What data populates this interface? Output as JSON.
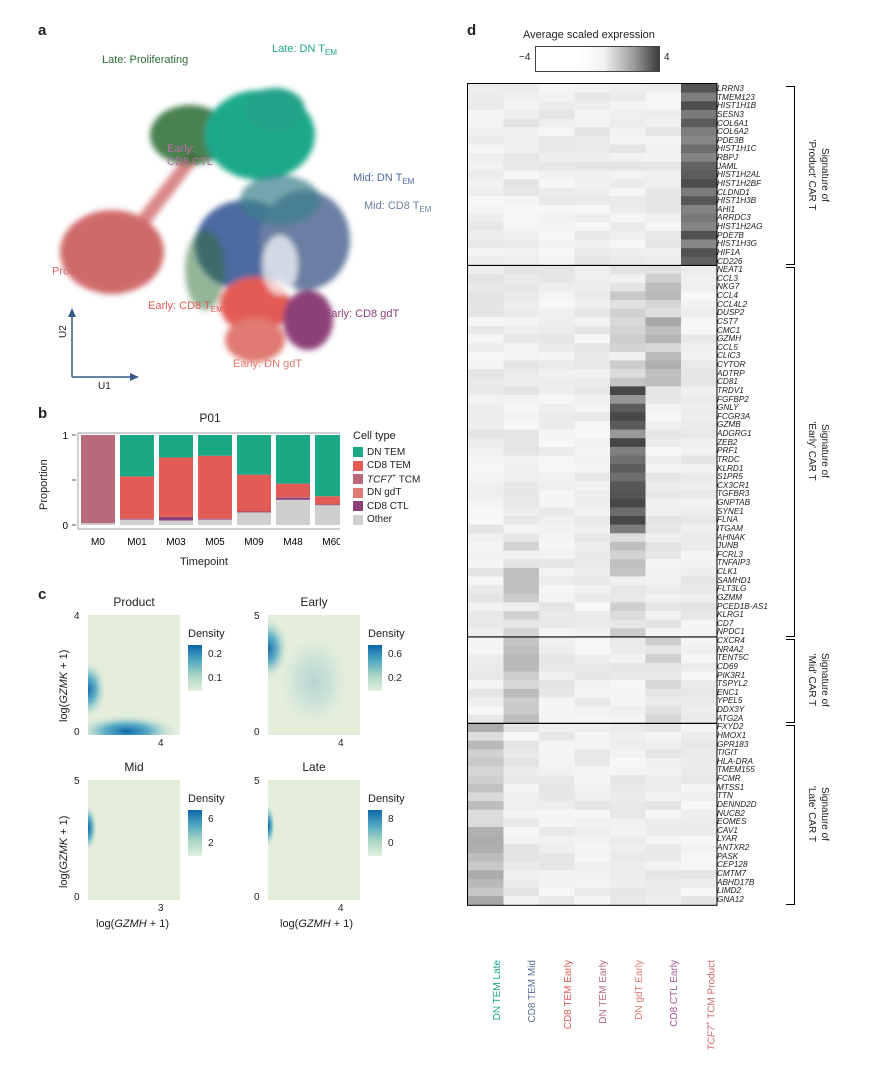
{
  "panels": {
    "a": "a",
    "b": "b",
    "c": "c",
    "d": "d"
  },
  "umap": {
    "clusters": [
      {
        "id": "late-prolif",
        "label": "Late: Proliferating",
        "color": "#2b6b33"
      },
      {
        "id": "late-dntem",
        "label": "Late: DN T",
        "sub": "EM",
        "color": "#1fa98a"
      },
      {
        "id": "early-cd8ctl",
        "label": "Early:\nCD8 CTL",
        "color": "#b76ea3"
      },
      {
        "id": "mid-dntem",
        "label": "Mid: DN T",
        "sub": "EM",
        "color": "#4e6aa2"
      },
      {
        "id": "mid-cd8tem",
        "label": "Mid: CD8 T",
        "sub": "EM",
        "color": "#6b7fa3"
      },
      {
        "id": "product",
        "label": "Product: ",
        "label_it": "TCF7",
        "sup": "+",
        "label2": " T",
        "sub": "CM",
        "color": "#cf6b6b"
      },
      {
        "id": "early-cd8tem",
        "label": "Early: CD8 T",
        "sub": "EM",
        "color": "#e25b54"
      },
      {
        "id": "early-cd8gdt",
        "label": "Early: CD8 gdT",
        "color": "#8c3f78"
      },
      {
        "id": "early-dngdt",
        "label": "Early: DN gdT",
        "color": "#e07a72"
      }
    ],
    "axis_x": "U1",
    "axis_y": "U2"
  },
  "chart_data": [
    {
      "type": "bar",
      "title": "P01",
      "xlabel": "Timepoint",
      "ylabel": "Proportion",
      "ylim": [
        0,
        1
      ],
      "yticks": [
        "0",
        "1"
      ],
      "categories": [
        "M0",
        "M01",
        "M03",
        "M05",
        "M09",
        "M48",
        "M60"
      ],
      "series": [
        {
          "name": "Other",
          "color": "#cfcfcf",
          "values": [
            0.02,
            0.06,
            0.05,
            0.06,
            0.14,
            0.28,
            0.22
          ]
        },
        {
          "name": "CD8 CTL",
          "color": "#8c3f78",
          "values": [
            0,
            0.01,
            0.04,
            0.01,
            0.01,
            0.02,
            0.01
          ]
        },
        {
          "name": "DN gdT",
          "color": "#e07a72",
          "values": [
            0,
            0,
            0,
            0,
            0,
            0,
            0
          ]
        },
        {
          "name": "TCF7+ TCM",
          "color": "#b86a7a",
          "values": [
            0.98,
            0,
            0,
            0,
            0,
            0.01,
            0
          ]
        },
        {
          "name": "CD8 TEM",
          "color": "#e25b54",
          "values": [
            0,
            0.47,
            0.66,
            0.7,
            0.41,
            0.15,
            0.09
          ]
        },
        {
          "name": "DN TEM",
          "color": "#1aa885",
          "values": [
            0,
            0.46,
            0.25,
            0.23,
            0.44,
            0.54,
            0.68
          ]
        }
      ],
      "legend_title": "Cell type",
      "legend": [
        {
          "name": "DN TEM",
          "color": "#1aa885"
        },
        {
          "name": "CD8 TEM",
          "color": "#e25b54"
        },
        {
          "name": "TCF7",
          "sup": "+",
          "rest": " TCM",
          "color": "#b86a7a"
        },
        {
          "name": "DN gdT",
          "color": "#e07a72"
        },
        {
          "name": "CD8 CTL",
          "color": "#8c3f78"
        },
        {
          "name": "Other",
          "color": "#cfcfcf"
        }
      ]
    },
    {
      "type": "heatmap",
      "title": "Product",
      "legend_title": "Density",
      "legend_ticks": [
        "0.2",
        "0.1"
      ],
      "xlim": [
        0,
        4
      ],
      "ylim": [
        0,
        4
      ],
      "xticks": [
        "4"
      ],
      "yticks": [
        "4",
        "0"
      ]
    },
    {
      "type": "heatmap",
      "title": "Early",
      "legend_title": "Density",
      "legend_ticks": [
        "0.6",
        "0.2"
      ],
      "xlim": [
        0,
        4
      ],
      "ylim": [
        0,
        5
      ],
      "xticks": [
        "4"
      ],
      "yticks": [
        "5",
        "0"
      ]
    },
    {
      "type": "heatmap",
      "title": "Mid",
      "legend_title": "Density",
      "legend_ticks": [
        "6",
        "2"
      ],
      "xlim": [
        0,
        3
      ],
      "ylim": [
        0,
        5
      ],
      "xticks": [
        "3"
      ],
      "yticks": [
        "5",
        "0"
      ]
    },
    {
      "type": "heatmap",
      "title": "Late",
      "legend_title": "Density",
      "legend_ticks": [
        "8",
        "0"
      ],
      "xlim": [
        0,
        4
      ],
      "ylim": [
        0,
        5
      ],
      "xticks": [
        "4"
      ],
      "yticks": [
        "5",
        "0"
      ]
    },
    {
      "type": "heatmap",
      "title": "Average scaled expression",
      "colorbar_ticks": [
        "−4",
        "4"
      ],
      "columns": [
        {
          "label": "DN TEM Late",
          "color": "#1aa885"
        },
        {
          "label": "CD8 TEM Mid",
          "color": "#5a6f9a"
        },
        {
          "label": "CD8 TEM Early",
          "color": "#e25b54"
        },
        {
          "label": "DN TEM Early",
          "color": "#b86a7a"
        },
        {
          "label": "DN gdT Early",
          "color": "#e07a72"
        },
        {
          "label": "CD8 CTL Early",
          "color": "#a35a96"
        },
        {
          "label": "TCF7",
          "sup": "+",
          "rest": " TCM Product",
          "color": "#cf6b6b"
        }
      ],
      "groups": [
        {
          "sig": "Signature of 'Product' CAR T",
          "genes": [
            "LRRN3",
            "TMEM123",
            "HIST1H1B",
            "SESN3",
            "COL6A1",
            "COL6A2",
            "PDE3B",
            "HIST1H1C",
            "RBPJ",
            "JAML",
            "HIST1H2AL",
            "HIST1H2BF",
            "CLDND1",
            "HIST1H3B",
            "AHI1",
            "ARRDC3",
            "HIST1H2AG",
            "PDE7B",
            "HIST1H3G",
            "HIF1A",
            "CD226"
          ],
          "hot": 6
        },
        {
          "sig": "Signature of 'Early' CAR T",
          "genes": [
            "NEAT1",
            "CCL3",
            "NKG7",
            "CCL4",
            "CCL4L2",
            "DUSP2",
            "CST7",
            "CMC1",
            "GZMH",
            "CCL5",
            "CLIC3",
            "CYTOR",
            "ADTRP",
            "CD81",
            "TRDV1",
            "FGFBP2",
            "GNLY",
            "FCGR3A",
            "GZMB",
            "ADGRG1",
            "ZEB2",
            "PRF1",
            "TRDC",
            "KLRD1",
            "S1PR5",
            "CX3CR1",
            "TGFBR3",
            "GNPTAB",
            "SYNE1",
            "FLNA",
            "ITGAM",
            "AHNAK",
            "JUNB",
            "FCRL3",
            "TNFAIP3",
            "CLK1",
            "SAMHD1",
            "FLT3LG",
            "GZMM",
            "PCED1B-AS1",
            "KLRG1",
            "CD7",
            "NPDC1"
          ],
          "hot": 4
        },
        {
          "sig": "Signature of 'Mid' CAR T",
          "genes": [
            "CXCR4",
            "NR4A2",
            "TENT5C",
            "CD69",
            "PIK3R1",
            "TSPYL2",
            "ENC1",
            "YPEL5",
            "DDX3Y",
            "ATG2A"
          ],
          "hot": 1
        },
        {
          "sig": "Signature of 'Late' CAR T",
          "genes": [
            "FXYD2",
            "HMOX1",
            "GPR183",
            "TIGIT",
            "HLA-DRA",
            "TMEM155",
            "FCMR",
            "MTSS1",
            "TTN",
            "DENND2D",
            "NUCB2",
            "EOMES",
            "CAV1",
            "LYAR",
            "ANTXR2",
            "PASK",
            "CEP128",
            "CMTM7",
            "ABHD17B",
            "LIMD2",
            "GNA12"
          ],
          "hot": 0
        }
      ]
    }
  ],
  "density_axes": {
    "ylabel_pre": "log(",
    "ylabel_it": "GZMK",
    "ylabel_post": " + 1)",
    "xlabel_pre": "log(",
    "xlabel_it": "GZMH",
    "xlabel_post": " + 1)",
    "zero": "0"
  }
}
